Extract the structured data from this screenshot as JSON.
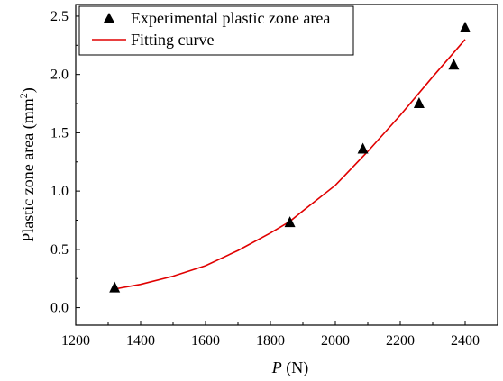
{
  "chart_data": {
    "type": "scatter",
    "title": "",
    "xlabel": {
      "symbol": "P",
      "unit": " (N)"
    },
    "ylabel": {
      "text": "Plastic zone area (mm",
      "sup": "2",
      "close": ")"
    },
    "xlim": [
      1200,
      2500
    ],
    "ylim": [
      -0.15,
      2.6
    ],
    "xticks": [
      1200,
      1400,
      1600,
      1800,
      2000,
      2200,
      2400
    ],
    "xtick_labels": [
      "1200",
      "1400",
      "1600",
      "1800",
      "2000",
      "2200",
      "2400"
    ],
    "yticks": [
      0.0,
      0.5,
      1.0,
      1.5,
      2.0,
      2.5
    ],
    "ytick_labels": [
      "0.0",
      "0.5",
      "1.0",
      "1.5",
      "2.0",
      "2.5"
    ],
    "grid": false,
    "legend_position": "top-left",
    "series": [
      {
        "name": "Experimental plastic zone area",
        "kind": "scatter",
        "marker": "triangle",
        "color": "#000000",
        "x": [
          1320,
          1860,
          2085,
          2258,
          2365,
          2400
        ],
        "y": [
          0.17,
          0.73,
          1.36,
          1.75,
          2.08,
          2.4
        ]
      },
      {
        "name": "Fitting curve",
        "kind": "line",
        "color": "#e00000",
        "x": [
          1320,
          1400,
          1500,
          1600,
          1700,
          1800,
          1860,
          1900,
          2000,
          2100,
          2200,
          2300,
          2400
        ],
        "y": [
          0.16,
          0.2,
          0.27,
          0.36,
          0.49,
          0.64,
          0.74,
          0.83,
          1.05,
          1.34,
          1.65,
          1.98,
          2.3
        ]
      }
    ]
  }
}
